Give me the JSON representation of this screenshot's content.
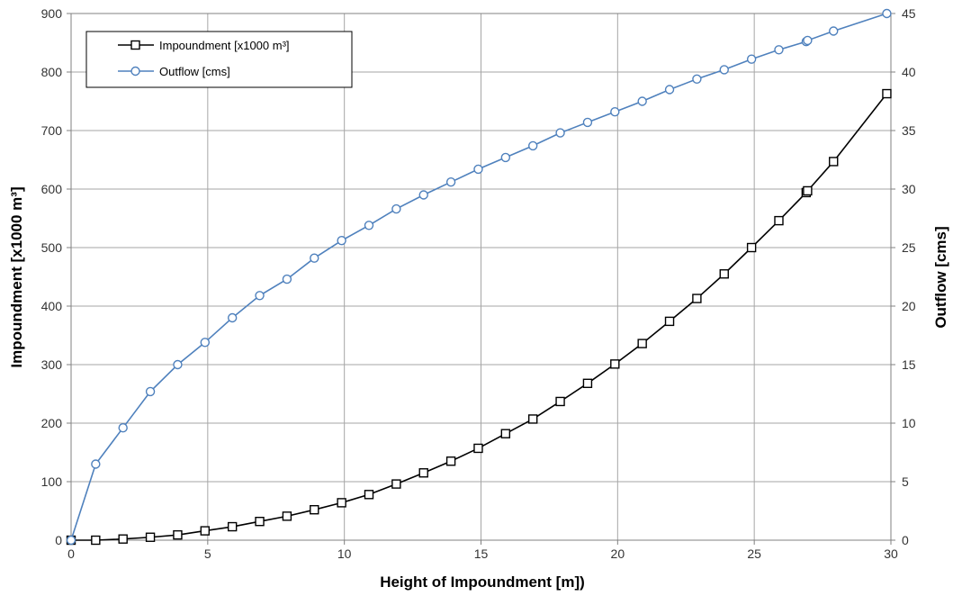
{
  "chart_data": {
    "type": "line",
    "xlabel": "Height of Impoundment [m])",
    "ylabel_left": "Impoundment [x1000 m³]",
    "ylabel_right": "Outflow [cms]",
    "xlim": [
      0,
      30
    ],
    "ylim_left": [
      0,
      900
    ],
    "ylim_right": [
      0,
      45
    ],
    "x_ticks": [
      "0",
      "5",
      "10",
      "15",
      "20",
      "25",
      "30"
    ],
    "y_left_ticks": [
      "0",
      "100",
      "200",
      "300",
      "400",
      "500",
      "600",
      "700",
      "800",
      "900"
    ],
    "y_right_ticks": [
      "0",
      "5",
      "10",
      "15",
      "20",
      "25",
      "30",
      "35",
      "40",
      "45"
    ],
    "grid": true,
    "legend_position": "top-left",
    "series": [
      {
        "name": "Impoundment [x1000 m³]",
        "axis": "left",
        "color": "#000000",
        "marker": "square",
        "x": [
          0,
          0.9,
          1.9,
          2.9,
          3.9,
          4.9,
          5.9,
          6.9,
          7.9,
          8.9,
          9.9,
          10.9,
          11.9,
          12.9,
          13.9,
          14.9,
          15.9,
          16.9,
          17.9,
          18.9,
          19.9,
          20.9,
          21.9,
          22.9,
          23.9,
          24.9,
          25.9,
          26.9,
          26.95,
          27.9,
          29.85
        ],
        "y": [
          0,
          0,
          2,
          5,
          9,
          16,
          23,
          32,
          41,
          52,
          64,
          78,
          96,
          115,
          135,
          157,
          182,
          207,
          237,
          268,
          301,
          336,
          374,
          413,
          455,
          500,
          546,
          594,
          597,
          647,
          763
        ]
      },
      {
        "name": "Outflow [cms]",
        "axis": "right",
        "color": "#4f81bd",
        "marker": "circle",
        "x": [
          0,
          0.9,
          1.9,
          2.9,
          3.9,
          4.9,
          5.9,
          6.9,
          7.9,
          8.9,
          9.9,
          10.9,
          11.9,
          12.9,
          13.9,
          14.9,
          15.9,
          16.9,
          17.9,
          18.9,
          19.9,
          20.9,
          21.9,
          22.9,
          23.9,
          24.9,
          25.9,
          26.9,
          26.95,
          27.9,
          29.85
        ],
        "y": [
          0,
          6.5,
          9.6,
          12.7,
          15.0,
          16.9,
          19.0,
          20.9,
          22.3,
          24.1,
          25.6,
          26.9,
          28.3,
          29.5,
          30.6,
          31.7,
          32.7,
          33.7,
          34.8,
          35.7,
          36.6,
          37.5,
          38.5,
          39.4,
          40.2,
          41.1,
          41.9,
          42.6,
          42.7,
          43.5,
          45.0
        ]
      }
    ]
  }
}
